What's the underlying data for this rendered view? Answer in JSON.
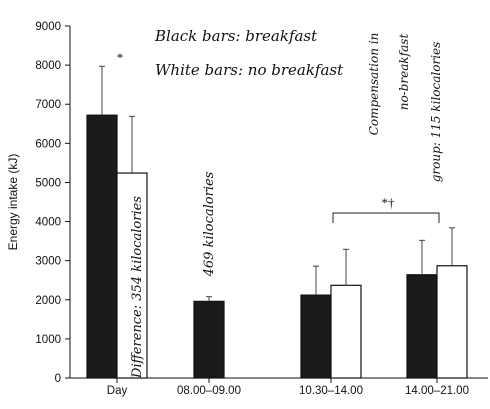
{
  "chart_data": {
    "type": "bar",
    "ylabel": "Energy intake (kJ)",
    "ylim": [
      0,
      9000
    ],
    "yticks": [
      0,
      1000,
      2000,
      3000,
      4000,
      5000,
      6000,
      7000,
      8000,
      9000
    ],
    "categories": [
      "Day",
      "08.00–09.00",
      "10.30–14.00",
      "14.00–21.00"
    ],
    "series": [
      {
        "name": "breakfast",
        "color": "#1a1a1a",
        "values": [
          6720,
          1960,
          2120,
          2640
        ],
        "errors": [
          1250,
          120,
          740,
          880
        ]
      },
      {
        "name": "no breakfast",
        "color": "#ffffff",
        "values": [
          5240,
          null,
          2370,
          2870
        ],
        "errors": [
          1450,
          null,
          920,
          970
        ]
      }
    ],
    "legend": {
      "line1": "Black bars: breakfast",
      "line2": "White bars: no breakfast"
    },
    "annotations": {
      "day_star": "*",
      "difference": "Difference: 354 kilocalories",
      "breakfast_kcal": "469 kilocalories",
      "compensation_1": "Compensation in",
      "compensation_2": "no-breakfast",
      "compensation_3": "group: 115 kilocalories",
      "bracket_label": "*†"
    }
  }
}
